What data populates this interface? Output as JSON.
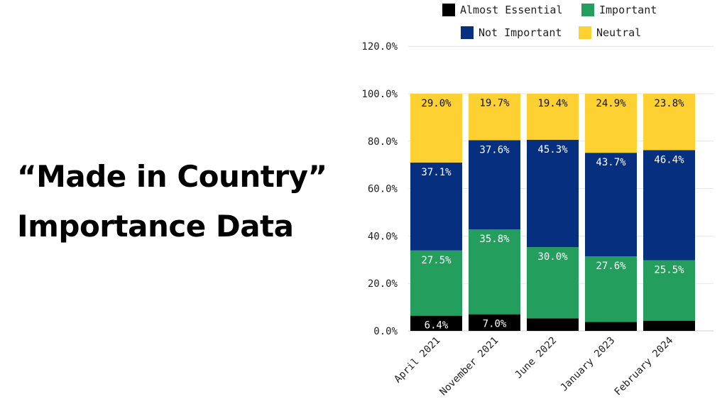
{
  "heading": {
    "line1": "“Made in Country”",
    "line2": "Importance Data"
  },
  "chart_data": {
    "type": "bar",
    "stacked": true,
    "title": "“Made in Country” Importance Data",
    "xlabel": "",
    "ylabel": "",
    "ylim": [
      0,
      120
    ],
    "yticks": [
      "0.0%",
      "20.0%",
      "40.0%",
      "60.0%",
      "80.0%",
      "100.0%",
      "120.0%"
    ],
    "grid": true,
    "legend_position": "top",
    "categories": [
      "April 2021",
      "November 2021",
      "June 2022",
      "January 2023",
      "February 2024"
    ],
    "series": [
      {
        "name": "Almost Essential",
        "color": "#000000",
        "label_color": "#ffffff",
        "values": [
          6.4,
          7.0,
          5.3,
          3.8,
          4.3
        ],
        "labels": [
          "6.4%",
          "7.0%",
          "",
          "",
          ""
        ]
      },
      {
        "name": "Important",
        "color": "#239e5c",
        "label_color": "#ffffff",
        "values": [
          27.5,
          35.8,
          30.0,
          27.6,
          25.5
        ],
        "labels": [
          "27.5%",
          "35.8%",
          "30.0%",
          "27.6%",
          "25.5%"
        ]
      },
      {
        "name": "Not Important",
        "color": "#06307f",
        "label_color": "#ffffff",
        "values": [
          37.1,
          37.6,
          45.3,
          43.7,
          46.4
        ],
        "labels": [
          "37.1%",
          "37.6%",
          "45.3%",
          "43.7%",
          "46.4%"
        ]
      },
      {
        "name": "Neutral",
        "color": "#fdd132",
        "label_color": "#111111",
        "values": [
          29.0,
          19.7,
          19.4,
          24.9,
          23.8
        ],
        "labels": [
          "29.0%",
          "19.7%",
          "19.4%",
          "24.9%",
          "23.8%"
        ]
      }
    ]
  }
}
